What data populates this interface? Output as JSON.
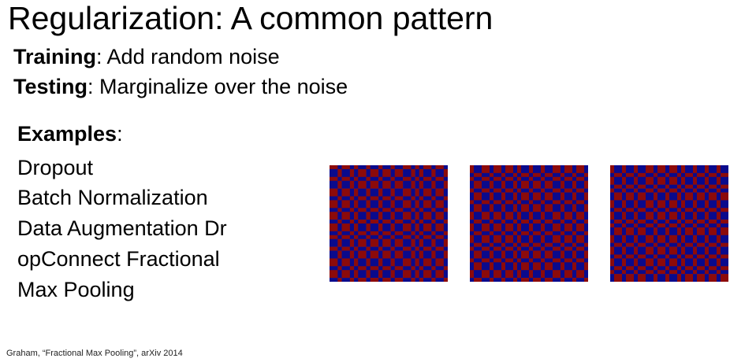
{
  "slide": {
    "title": "Regularization: A common pattern",
    "training": {
      "label": "Training",
      "text": "Add random noise"
    },
    "testing": {
      "label": "Testing",
      "text": "Marginalize over the noise"
    },
    "examples": {
      "heading": "Examples",
      "lines": [
        "Dropout",
        "Batch Normalization",
        "Data Augmentation   Dr",
        "opConnect   Fractional",
        "Max Pooling"
      ]
    },
    "citation": "Graham, “Fractional Max Pooling”, arXiv 2014",
    "figure": {
      "description_icon": "fractional-max-pooling-regions",
      "colors": {
        "region_a": "#0a0a8c",
        "region_b": "#8c0a0a"
      },
      "grids": [
        {
          "cols": [
            2,
            1,
            2,
            1,
            1,
            2,
            1,
            2,
            1,
            2,
            1,
            2,
            2,
            1,
            1,
            1,
            2,
            1,
            2,
            1
          ],
          "rows": [
            1,
            2,
            1,
            2,
            2,
            1,
            2,
            1,
            2,
            1,
            2,
            1,
            1,
            2,
            1,
            2,
            2,
            1,
            2,
            1
          ]
        },
        {
          "cols": [
            1,
            2,
            2,
            1,
            2,
            1,
            2,
            1,
            1,
            2,
            1,
            2,
            1,
            2,
            2,
            1,
            2,
            1,
            2,
            1
          ],
          "rows": [
            2,
            1,
            1,
            2,
            1,
            2,
            1,
            2,
            2,
            1,
            2,
            1,
            2,
            1,
            1,
            2,
            1,
            2,
            2,
            1
          ]
        },
        {
          "cols": [
            1,
            2,
            1,
            2,
            1,
            2,
            2,
            1,
            2,
            1,
            2,
            1,
            1,
            2,
            1,
            2,
            1,
            2,
            1,
            2
          ],
          "rows": [
            2,
            1,
            2,
            1,
            1,
            2,
            2,
            1,
            2,
            1,
            1,
            2,
            2,
            1,
            2,
            1,
            2,
            1,
            1,
            2
          ]
        }
      ]
    }
  }
}
